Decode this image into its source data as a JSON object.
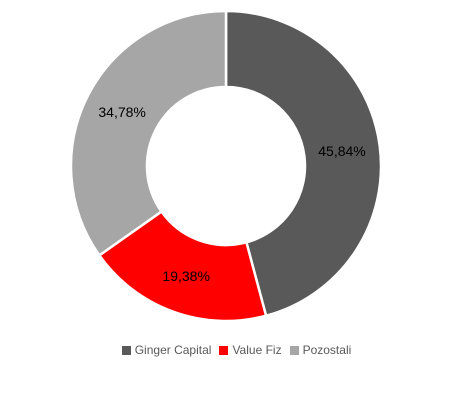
{
  "chart_data": {
    "type": "pie",
    "variant": "doughnut",
    "categories": [
      "Ginger Capital",
      "Value Fiz",
      "Pozostali"
    ],
    "values": [
      45.84,
      19.38,
      34.78
    ],
    "data_labels": [
      "45,84%",
      "19,38%",
      "34,78%"
    ],
    "colors": [
      "#595959",
      "#ff0000",
      "#a6a6a6"
    ],
    "legend_position": "bottom",
    "start_angle_deg": 0,
    "direction": "clockwise"
  }
}
